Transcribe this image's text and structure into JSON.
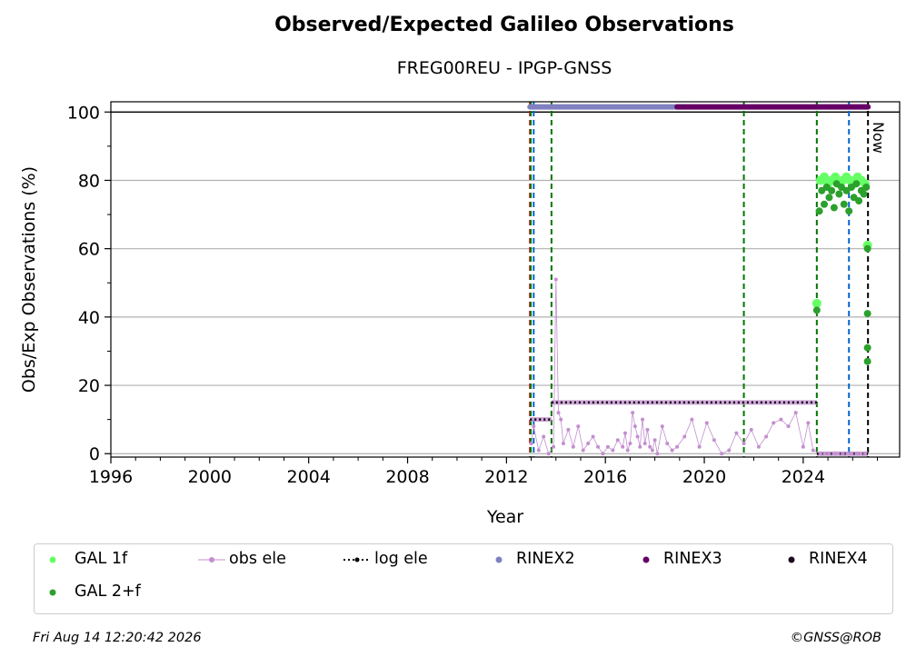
{
  "chart_data": {
    "type": "scatter",
    "title": "Observed/Expected Galileo Observations",
    "subtitle": "FREG00REU - IPGP-GNSS",
    "xlabel": "Year",
    "ylabel": "Obs/Exp Observations (%)",
    "xlim": [
      1996,
      2027.9
    ],
    "ylim": [
      -1,
      103
    ],
    "xticks": [
      1996,
      2000,
      2004,
      2008,
      2012,
      2016,
      2020,
      2024
    ],
    "yticks": [
      0,
      20,
      40,
      60,
      80,
      100
    ],
    "grid": "horizontal",
    "now_label": "Now",
    "reference_line_y": 100,
    "colors": {
      "gal_1f": "#66ff66",
      "gal_2f": "#2ca02c",
      "obs_ele": "#c38ecf",
      "log_ele": "#000000",
      "rinex2": "#8080c0",
      "rinex3": "#660066",
      "rinex4": "#1a0a1a",
      "green_line": "#007700",
      "blue_line": "#0066cc",
      "red_line": "#cc0000",
      "now_line": "#000000"
    },
    "vertical_lines": {
      "red": [
        2012.95
      ],
      "blue": [
        2013.1,
        2025.85
      ],
      "green": [
        2012.98,
        2013.82,
        2021.6,
        2024.55
      ],
      "now": [
        2026.62
      ]
    },
    "rinex_bars": [
      {
        "format": "RINEX2",
        "start": 2012.95,
        "end": 2018.9
      },
      {
        "format": "RINEX3",
        "start": 2018.9,
        "end": 2026.62
      }
    ],
    "log_ele_steps": [
      {
        "start": 2012.95,
        "end": 2013.82,
        "y": 10
      },
      {
        "start": 2013.82,
        "end": 2024.55,
        "y": 15
      },
      {
        "start": 2024.55,
        "end": 2026.62,
        "y": 0
      }
    ],
    "obs_ele": {
      "x": [
        2013.0,
        2013.1,
        2013.3,
        2013.5,
        2013.7,
        2013.9,
        2014.0,
        2014.1,
        2014.2,
        2014.3,
        2014.5,
        2014.7,
        2014.9,
        2015.1,
        2015.3,
        2015.5,
        2015.7,
        2015.9,
        2016.1,
        2016.3,
        2016.5,
        2016.7,
        2016.8,
        2016.9,
        2017.0,
        2017.1,
        2017.2,
        2017.3,
        2017.4,
        2017.5,
        2017.6,
        2017.7,
        2017.8,
        2017.9,
        2018.0,
        2018.1,
        2018.3,
        2018.5,
        2018.7,
        2018.9,
        2019.2,
        2019.5,
        2019.8,
        2020.1,
        2020.4,
        2020.7,
        2021.0,
        2021.3,
        2021.6,
        2021.9,
        2022.2,
        2022.5,
        2022.8,
        2023.1,
        2023.4,
        2023.7,
        2024.0,
        2024.2,
        2024.4,
        2024.7,
        2025.0,
        2025.3,
        2025.6,
        2025.9,
        2026.2,
        2026.5
      ],
      "y": [
        3,
        8,
        1,
        5,
        0,
        2,
        51,
        12,
        10,
        3,
        7,
        2,
        8,
        1,
        3,
        5,
        2,
        0,
        2,
        1,
        4,
        2,
        6,
        1,
        3,
        12,
        8,
        5,
        2,
        10,
        3,
        7,
        2,
        1,
        4,
        0,
        8,
        3,
        1,
        2,
        5,
        10,
        2,
        9,
        4,
        0,
        1,
        6,
        3,
        7,
        2,
        5,
        9,
        10,
        8,
        12,
        2,
        9,
        1,
        0,
        0,
        0,
        0,
        0,
        0,
        0
      ]
    },
    "gal_1f": {
      "x": [
        2024.55,
        2024.7,
        2024.85,
        2025.0,
        2025.15,
        2025.3,
        2025.45,
        2025.6,
        2025.75,
        2025.9,
        2026.05,
        2026.2,
        2026.35,
        2026.5,
        2026.6
      ],
      "y": [
        44,
        80,
        81,
        79,
        80,
        81,
        79,
        80,
        81,
        80,
        79,
        81,
        80,
        79,
        61
      ]
    },
    "gal_2f": {
      "x": [
        2024.55,
        2024.65,
        2024.75,
        2024.85,
        2024.95,
        2025.05,
        2025.15,
        2025.25,
        2025.35,
        2025.45,
        2025.55,
        2025.65,
        2025.75,
        2025.85,
        2025.95,
        2026.05,
        2026.15,
        2026.25,
        2026.35,
        2026.45,
        2026.55,
        2026.6,
        2026.6,
        2026.6,
        2026.6
      ],
      "y": [
        42,
        71,
        77,
        73,
        78,
        75,
        77,
        72,
        79,
        76,
        78,
        73,
        77,
        71,
        78,
        75,
        79,
        74,
        77,
        76,
        78,
        60,
        41,
        31,
        27
      ]
    },
    "legend": [
      {
        "key": "gal_1f",
        "label": "GAL 1f",
        "marker": "dot"
      },
      {
        "key": "obs_ele",
        "label": "obs ele",
        "marker": "line-dot"
      },
      {
        "key": "log_ele",
        "label": "log ele",
        "marker": "dotted-line"
      },
      {
        "key": "rinex2",
        "label": "RINEX2",
        "marker": "dot"
      },
      {
        "key": "rinex3",
        "label": "RINEX3",
        "marker": "dot"
      },
      {
        "key": "rinex4",
        "label": "RINEX4",
        "marker": "dot"
      },
      {
        "key": "gal_2f",
        "label": "GAL 2+f",
        "marker": "dot"
      }
    ],
    "legend_placement": "bottom"
  },
  "footer": {
    "timestamp": "Fri Aug 14 12:20:42 2026",
    "credit": "©GNSS@ROB"
  }
}
